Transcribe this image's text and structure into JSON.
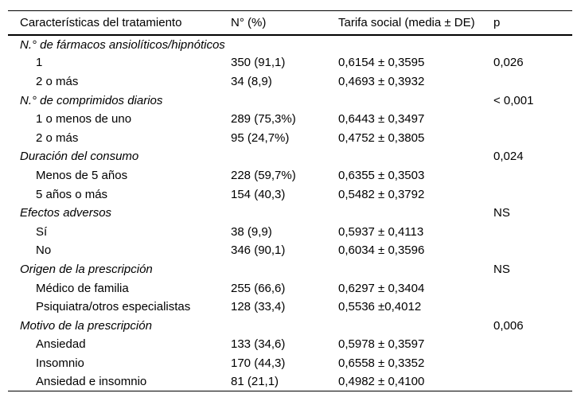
{
  "table": {
    "columns": {
      "label": "Características del tratamiento",
      "n": "N° (%)",
      "tarifa": "Tarifa social (media ± DE)",
      "p": "p"
    },
    "rows": [
      {
        "type": "group",
        "label": "N.° de fármacos ansiolíticos/hipnóticos",
        "n": "",
        "tarifa": "",
        "p": ""
      },
      {
        "type": "item",
        "label": "1",
        "n": "350 (91,1)",
        "tarifa": "0,6154 ± 0,3595",
        "p": "0,026"
      },
      {
        "type": "item",
        "label": "2 o más",
        "n": "34 (8,9)",
        "tarifa": "0,4693 ± 0,3932",
        "p": ""
      },
      {
        "type": "group",
        "label": "N.° de comprimidos diarios",
        "n": "",
        "tarifa": "",
        "p": "< 0,001"
      },
      {
        "type": "item",
        "label": "1 o menos de uno",
        "n": "289 (75,3%)",
        "tarifa": "0,6443 ± 0,3497",
        "p": ""
      },
      {
        "type": "item",
        "label": "2 o más",
        "n": "95 (24,7%)",
        "tarifa": "0,4752 ± 0,3805",
        "p": ""
      },
      {
        "type": "group",
        "label": "Duración del consumo",
        "n": "",
        "tarifa": "",
        "p": "0,024"
      },
      {
        "type": "item",
        "label": "Menos de 5 años",
        "n": "228 (59,7%)",
        "tarifa": "0,6355 ± 0,3503",
        "p": ""
      },
      {
        "type": "item",
        "label": "5 años o más",
        "n": "154 (40,3)",
        "tarifa": "0,5482 ± 0,3792",
        "p": ""
      },
      {
        "type": "group",
        "label": "Efectos adversos",
        "n": "",
        "tarifa": "",
        "p": "NS"
      },
      {
        "type": "item",
        "label": "Sí",
        "n": "38 (9,9)",
        "tarifa": "0,5937 ± 0,4113",
        "p": ""
      },
      {
        "type": "item",
        "label": "No",
        "n": "346 (90,1)",
        "tarifa": "0,6034 ± 0,3596",
        "p": ""
      },
      {
        "type": "group",
        "label": "Origen de la prescripción",
        "n": "",
        "tarifa": "",
        "p": "NS"
      },
      {
        "type": "item",
        "label": "Médico de familia",
        "n": "255 (66,6)",
        "tarifa": "0,6297 ± 0,3404",
        "p": ""
      },
      {
        "type": "item",
        "label": "Psiquiatra/otros especialistas",
        "n": "128 (33,4)",
        "tarifa": "0,5536 ±0,4012",
        "p": ""
      },
      {
        "type": "group",
        "label": "Motivo de la prescripción",
        "n": "",
        "tarifa": "",
        "p": "0,006"
      },
      {
        "type": "item",
        "label": "Ansiedad",
        "n": "133 (34,6)",
        "tarifa": "0,5978 ± 0,3597",
        "p": ""
      },
      {
        "type": "item",
        "label": "Insomnio",
        "n": "170 (44,3)",
        "tarifa": "0,6558 ± 0,3352",
        "p": ""
      },
      {
        "type": "item",
        "label": "Ansiedad e insomnio",
        "n": "81 (21,1)",
        "tarifa": "0,4982 ± 0,4100",
        "p": ""
      }
    ]
  }
}
